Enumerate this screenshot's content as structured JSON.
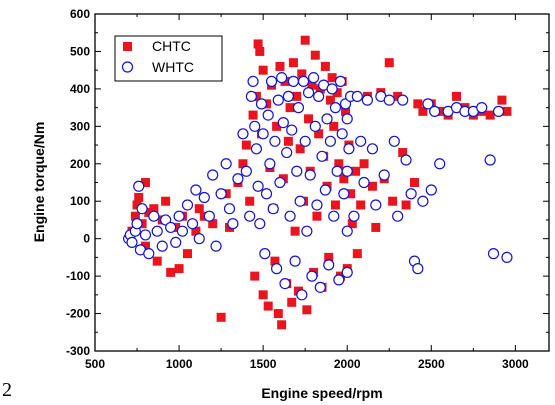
{
  "page_number": "2",
  "chart_data": {
    "type": "scatter",
    "xlabel": "Engine speed/rpm",
    "ylabel": "Engine torque/Nm",
    "xlim": [
      500,
      3200
    ],
    "ylim": [
      -300,
      600
    ],
    "xticks": [
      "500",
      "1000",
      "1500",
      "2000",
      "2500",
      "3000"
    ],
    "yticks": [
      "-300",
      "-200",
      "-100",
      "0",
      "100",
      "200",
      "300",
      "400",
      "500",
      "600"
    ],
    "legend_position": "top-left",
    "series": [
      {
        "name": "CHTC",
        "marker": "filled-square",
        "color": "#e8141e",
        "points": [
          [
            720,
            20
          ],
          [
            740,
            60
          ],
          [
            750,
            90
          ],
          [
            760,
            110
          ],
          [
            780,
            40
          ],
          [
            800,
            150
          ],
          [
            800,
            -20
          ],
          [
            820,
            70
          ],
          [
            850,
            80
          ],
          [
            870,
            -60
          ],
          [
            900,
            50
          ],
          [
            920,
            100
          ],
          [
            950,
            -90
          ],
          [
            980,
            30
          ],
          [
            1000,
            -80
          ],
          [
            1020,
            60
          ],
          [
            1050,
            -40
          ],
          [
            1100,
            20
          ],
          [
            1120,
            80
          ],
          [
            1150,
            60
          ],
          [
            1200,
            40
          ],
          [
            1250,
            -210
          ],
          [
            1280,
            120
          ],
          [
            1300,
            30
          ],
          [
            1350,
            150
          ],
          [
            1380,
            200
          ],
          [
            1400,
            250
          ],
          [
            1420,
            100
          ],
          [
            1440,
            330
          ],
          [
            1450,
            -100
          ],
          [
            1460,
            380
          ],
          [
            1470,
            520
          ],
          [
            1480,
            500
          ],
          [
            1490,
            280
          ],
          [
            1500,
            450
          ],
          [
            1500,
            -150
          ],
          [
            1520,
            360
          ],
          [
            1530,
            -180
          ],
          [
            1540,
            190
          ],
          [
            1550,
            410
          ],
          [
            1560,
            80
          ],
          [
            1570,
            -60
          ],
          [
            1580,
            300
          ],
          [
            1590,
            -200
          ],
          [
            1600,
            460
          ],
          [
            1610,
            -230
          ],
          [
            1620,
            160
          ],
          [
            1630,
            420
          ],
          [
            1640,
            -120
          ],
          [
            1650,
            260
          ],
          [
            1660,
            350
          ],
          [
            1670,
            -170
          ],
          [
            1680,
            470
          ],
          [
            1690,
            20
          ],
          [
            1700,
            380
          ],
          [
            1710,
            -140
          ],
          [
            1720,
            240
          ],
          [
            1730,
            440
          ],
          [
            1740,
            100
          ],
          [
            1750,
            530
          ],
          [
            1760,
            -190
          ],
          [
            1770,
            320
          ],
          [
            1780,
            180
          ],
          [
            1790,
            410
          ],
          [
            1800,
            -90
          ],
          [
            1810,
            490
          ],
          [
            1820,
            60
          ],
          [
            1830,
            280
          ],
          [
            1840,
            400
          ],
          [
            1850,
            -130
          ],
          [
            1860,
            220
          ],
          [
            1870,
            460
          ],
          [
            1880,
            140
          ],
          [
            1890,
            -50
          ],
          [
            1900,
            370
          ],
          [
            1910,
            430
          ],
          [
            1920,
            300
          ],
          [
            1930,
            90
          ],
          [
            1940,
            390
          ],
          [
            1950,
            200
          ],
          [
            1960,
            -100
          ],
          [
            1970,
            420
          ],
          [
            1980,
            160
          ],
          [
            1990,
            340
          ],
          [
            2000,
            -80
          ],
          [
            2010,
            250
          ],
          [
            2020,
            120
          ],
          [
            2030,
            40
          ],
          [
            2050,
            180
          ],
          [
            2060,
            -40
          ],
          [
            2080,
            90
          ],
          [
            2100,
            200
          ],
          [
            2120,
            380
          ],
          [
            2150,
            140
          ],
          [
            2170,
            30
          ],
          [
            2200,
            390
          ],
          [
            2220,
            160
          ],
          [
            2250,
            470
          ],
          [
            2270,
            100
          ],
          [
            2300,
            380
          ],
          [
            2330,
            230
          ],
          [
            2350,
            90
          ],
          [
            2400,
            150
          ],
          [
            2420,
            360
          ],
          [
            2450,
            340
          ],
          [
            2500,
            360
          ],
          [
            2550,
            340
          ],
          [
            2600,
            330
          ],
          [
            2650,
            380
          ],
          [
            2700,
            350
          ],
          [
            2750,
            330
          ],
          [
            2800,
            340
          ],
          [
            2850,
            330
          ],
          [
            2920,
            370
          ],
          [
            2950,
            340
          ]
        ]
      },
      {
        "name": "WHTC",
        "marker": "open-circle",
        "color": "#1414d2",
        "points": [
          [
            700,
            0
          ],
          [
            710,
            10
          ],
          [
            720,
            -10
          ],
          [
            740,
            20
          ],
          [
            750,
            40
          ],
          [
            760,
            140
          ],
          [
            770,
            -30
          ],
          [
            780,
            80
          ],
          [
            800,
            10
          ],
          [
            820,
            -40
          ],
          [
            850,
            60
          ],
          [
            870,
            20
          ],
          [
            900,
            -20
          ],
          [
            920,
            50
          ],
          [
            950,
            30
          ],
          [
            980,
            -10
          ],
          [
            1000,
            60
          ],
          [
            1020,
            20
          ],
          [
            1050,
            90
          ],
          [
            1080,
            40
          ],
          [
            1100,
            130
          ],
          [
            1120,
            0
          ],
          [
            1150,
            110
          ],
          [
            1180,
            60
          ],
          [
            1200,
            170
          ],
          [
            1220,
            -20
          ],
          [
            1250,
            120
          ],
          [
            1280,
            200
          ],
          [
            1300,
            80
          ],
          [
            1320,
            40
          ],
          [
            1350,
            160
          ],
          [
            1380,
            280
          ],
          [
            1400,
            180
          ],
          [
            1420,
            60
          ],
          [
            1430,
            380
          ],
          [
            1440,
            420
          ],
          [
            1450,
            300
          ],
          [
            1460,
            240
          ],
          [
            1470,
            140
          ],
          [
            1480,
            40
          ],
          [
            1490,
            360
          ],
          [
            1500,
            280
          ],
          [
            1510,
            -40
          ],
          [
            1520,
            120
          ],
          [
            1530,
            330
          ],
          [
            1540,
            200
          ],
          [
            1550,
            420
          ],
          [
            1560,
            80
          ],
          [
            1570,
            260
          ],
          [
            1580,
            -80
          ],
          [
            1590,
            370
          ],
          [
            1600,
            150
          ],
          [
            1610,
            430
          ],
          [
            1620,
            310
          ],
          [
            1630,
            -120
          ],
          [
            1640,
            230
          ],
          [
            1650,
            380
          ],
          [
            1660,
            60
          ],
          [
            1670,
            290
          ],
          [
            1680,
            420
          ],
          [
            1690,
            -60
          ],
          [
            1700,
            180
          ],
          [
            1710,
            350
          ],
          [
            1720,
            100
          ],
          [
            1730,
            -150
          ],
          [
            1740,
            420
          ],
          [
            1750,
            260
          ],
          [
            1760,
            20
          ],
          [
            1770,
            390
          ],
          [
            1780,
            170
          ],
          [
            1790,
            -100
          ],
          [
            1800,
            430
          ],
          [
            1810,
            300
          ],
          [
            1820,
            90
          ],
          [
            1830,
            380
          ],
          [
            1840,
            -130
          ],
          [
            1850,
            220
          ],
          [
            1860,
            410
          ],
          [
            1870,
            130
          ],
          [
            1880,
            320
          ],
          [
            1890,
            -70
          ],
          [
            1900,
            260
          ],
          [
            1910,
            400
          ],
          [
            1920,
            60
          ],
          [
            1930,
            350
          ],
          [
            1940,
            180
          ],
          [
            1950,
            -110
          ],
          [
            1960,
            420
          ],
          [
            1970,
            280
          ],
          [
            1980,
            120
          ],
          [
            1990,
            360
          ],
          [
            2000,
            320
          ],
          [
            2000,
            180
          ],
          [
            2000,
            20
          ],
          [
            2000,
            -90
          ],
          [
            2010,
            240
          ],
          [
            2020,
            380
          ],
          [
            2040,
            60
          ],
          [
            2060,
            380
          ],
          [
            2080,
            260
          ],
          [
            2100,
            150
          ],
          [
            2120,
            370
          ],
          [
            2150,
            240
          ],
          [
            2170,
            90
          ],
          [
            2200,
            380
          ],
          [
            2220,
            170
          ],
          [
            2250,
            370
          ],
          [
            2280,
            260
          ],
          [
            2300,
            60
          ],
          [
            2330,
            370
          ],
          [
            2350,
            210
          ],
          [
            2380,
            120
          ],
          [
            2400,
            -60
          ],
          [
            2420,
            -80
          ],
          [
            2450,
            100
          ],
          [
            2480,
            360
          ],
          [
            2500,
            130
          ],
          [
            2520,
            340
          ],
          [
            2550,
            200
          ],
          [
            2600,
            340
          ],
          [
            2650,
            350
          ],
          [
            2700,
            340
          ],
          [
            2750,
            340
          ],
          [
            2800,
            350
          ],
          [
            2850,
            210
          ],
          [
            2870,
            -40
          ],
          [
            2900,
            340
          ],
          [
            2950,
            -50
          ]
        ]
      }
    ]
  }
}
